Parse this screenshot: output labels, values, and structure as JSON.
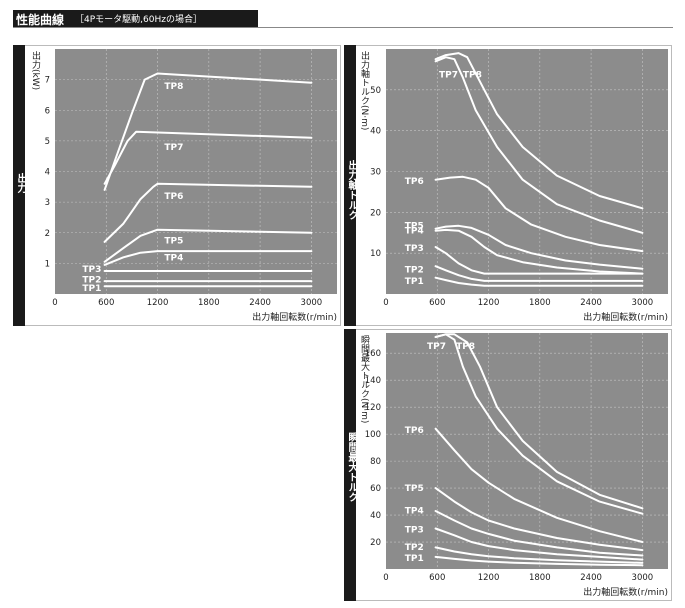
{
  "header": {
    "title": "性能曲線",
    "subtitle": "［4Pモータ駆動,60Hzの場合］"
  },
  "chart_data": [
    {
      "type": "line",
      "side_label": "出力",
      "ylabel": "出力(kW)",
      "xlabel": "出力軸回転数(r/min)",
      "xticks": [
        "0",
        "600",
        "1200",
        "1800",
        "2400",
        "3000"
      ],
      "yticks": [
        "1",
        "2",
        "3",
        "4",
        "5",
        "6",
        "7"
      ],
      "xlim": [
        0,
        3300
      ],
      "ylim": [
        0,
        8
      ],
      "grid": true,
      "series": [
        {
          "name": "TP8",
          "x": [
            580,
            720,
            900,
            1050,
            1200,
            3000
          ],
          "y": [
            3.4,
            4.5,
            5.9,
            7.0,
            7.2,
            6.9
          ]
        },
        {
          "name": "TP7",
          "x": [
            580,
            700,
            850,
            950,
            3000
          ],
          "y": [
            3.6,
            4.2,
            5.0,
            5.3,
            5.1
          ]
        },
        {
          "name": "TP6",
          "x": [
            580,
            800,
            1000,
            1150,
            1200,
            3000
          ],
          "y": [
            1.7,
            2.3,
            3.1,
            3.5,
            3.6,
            3.5
          ]
        },
        {
          "name": "TP5",
          "x": [
            580,
            800,
            1000,
            1200,
            3000
          ],
          "y": [
            1.05,
            1.5,
            1.9,
            2.1,
            2.0
          ]
        },
        {
          "name": "TP4",
          "x": [
            580,
            800,
            1000,
            1200,
            3000
          ],
          "y": [
            0.95,
            1.2,
            1.35,
            1.4,
            1.4
          ]
        },
        {
          "name": "TP3",
          "x": [
            580,
            3000
          ],
          "y": [
            0.75,
            0.75
          ]
        },
        {
          "name": "TP2",
          "x": [
            580,
            3000
          ],
          "y": [
            0.42,
            0.42
          ]
        },
        {
          "name": "TP1",
          "x": [
            580,
            3000
          ],
          "y": [
            0.25,
            0.25
          ]
        }
      ],
      "labels": [
        {
          "text": "TP8",
          "x": 1280,
          "y": 6.7
        },
        {
          "text": "TP7",
          "x": 1280,
          "y": 4.7
        },
        {
          "text": "TP6",
          "x": 1280,
          "y": 3.1
        },
        {
          "text": "TP5",
          "x": 1280,
          "y": 1.65
        },
        {
          "text": "TP4",
          "x": 1280,
          "y": 1.1
        },
        {
          "text": "TP3",
          "x": 320,
          "y": 0.72
        },
        {
          "text": "TP2",
          "x": 320,
          "y": 0.38
        },
        {
          "text": "TP1",
          "x": 320,
          "y": 0.1
        }
      ]
    },
    {
      "type": "line",
      "side_label": "出力軸トルク",
      "ylabel": "出力軸トルク(N·m)",
      "xlabel": "出力軸回転数(r/min)",
      "xticks": [
        "0",
        "600",
        "1200",
        "1800",
        "2400",
        "3000"
      ],
      "yticks": [
        "10",
        "20",
        "30",
        "40",
        "50"
      ],
      "xlim": [
        0,
        3300
      ],
      "ylim": [
        0,
        60
      ],
      "grid": true,
      "series": [
        {
          "name": "TP8",
          "x": [
            580,
            700,
            850,
            950,
            1100,
            1300,
            1600,
            2000,
            2500,
            3000
          ],
          "y": [
            57.5,
            58.5,
            59,
            58,
            52,
            44,
            36,
            29,
            24,
            21
          ]
        },
        {
          "name": "TP7",
          "x": [
            580,
            700,
            800,
            900,
            1050,
            1300,
            1600,
            2000,
            2500,
            3000
          ],
          "y": [
            57,
            58,
            57.5,
            53,
            45,
            36,
            28,
            22,
            18,
            15
          ]
        },
        {
          "name": "TP6",
          "x": [
            580,
            750,
            900,
            1050,
            1200,
            1400,
            1700,
            2100,
            2500,
            3000
          ],
          "y": [
            28,
            28.5,
            28.7,
            28,
            26,
            21,
            17,
            14,
            12,
            10.5
          ]
        },
        {
          "name": "TP5",
          "x": [
            580,
            700,
            850,
            1000,
            1200,
            1400,
            1700,
            2100,
            2500,
            3000
          ],
          "y": [
            16,
            16.5,
            16.7,
            16.2,
            14.5,
            12,
            10,
            8.2,
            7.2,
            6.2
          ]
        },
        {
          "name": "TP4",
          "x": [
            580,
            700,
            850,
            1000,
            1150,
            1300,
            1600,
            2000,
            2500,
            3000
          ],
          "y": [
            15.5,
            15.7,
            15.5,
            14,
            11.5,
            9.5,
            7.8,
            6.5,
            5.5,
            5
          ]
        },
        {
          "name": "TP3",
          "x": [
            580,
            700,
            850,
            1000,
            1150,
            1200,
            3000
          ],
          "y": [
            11.5,
            10,
            7.5,
            5.8,
            5,
            5,
            5
          ]
        },
        {
          "name": "TP2",
          "x": [
            580,
            700,
            850,
            1000,
            1150,
            1200,
            3000
          ],
          "y": [
            6.8,
            5.8,
            4.6,
            3.7,
            3.2,
            3.2,
            3.2
          ]
        },
        {
          "name": "TP1",
          "x": [
            580,
            700,
            850,
            1000,
            1150,
            1200,
            3000
          ],
          "y": [
            4,
            3.4,
            2.7,
            2.3,
            2,
            2,
            2
          ]
        }
      ],
      "labels": [
        {
          "text": "TP7",
          "x": 620,
          "y": 53
        },
        {
          "text": "TP8",
          "x": 900,
          "y": 53
        },
        {
          "text": "TP6",
          "x": 220,
          "y": 27
        },
        {
          "text": "TP5",
          "x": 220,
          "y": 16
        },
        {
          "text": "TP4",
          "x": 220,
          "y": 14.8
        },
        {
          "text": "TP3",
          "x": 220,
          "y": 10.5
        },
        {
          "text": "TP2",
          "x": 220,
          "y": 5.3
        },
        {
          "text": "TP1",
          "x": 220,
          "y": 2.5
        }
      ]
    },
    {
      "type": "line",
      "side_label": "瞬間最大トルク",
      "ylabel": "瞬間最大トルク(N·m)",
      "xlabel": "出力軸回転数(r/min)",
      "xticks": [
        "0",
        "600",
        "1200",
        "1800",
        "2400",
        "3000"
      ],
      "yticks": [
        "20",
        "40",
        "60",
        "80",
        "100",
        "120",
        "140",
        "160"
      ],
      "xlim": [
        0,
        3300
      ],
      "ylim": [
        0,
        175
      ],
      "grid": true,
      "series": [
        {
          "name": "TP8",
          "x": [
            580,
            700,
            800,
            950,
            1100,
            1300,
            1600,
            2000,
            2500,
            3000
          ],
          "y": [
            172,
            174,
            174,
            168,
            150,
            120,
            95,
            72,
            55,
            45
          ]
        },
        {
          "name": "TP7",
          "x": [
            580,
            700,
            800,
            900,
            1050,
            1300,
            1600,
            2000,
            2500,
            3000
          ],
          "y": [
            172,
            174,
            170,
            150,
            128,
            104,
            84,
            65,
            50,
            41
          ]
        },
        {
          "name": "TP6",
          "x": [
            580,
            800,
            1000,
            1200,
            1500,
            2000,
            2500,
            3000
          ],
          "y": [
            104,
            88,
            74,
            64,
            52,
            38,
            28,
            20
          ]
        },
        {
          "name": "TP5",
          "x": [
            580,
            800,
            1000,
            1200,
            1500,
            2000,
            2500,
            3000
          ],
          "y": [
            60,
            50,
            42,
            36,
            30,
            23,
            18,
            14
          ]
        },
        {
          "name": "TP4",
          "x": [
            580,
            800,
            1000,
            1200,
            1500,
            2000,
            2500,
            3000
          ],
          "y": [
            43,
            36,
            30,
            26,
            21,
            16,
            12,
            10
          ]
        },
        {
          "name": "TP3",
          "x": [
            580,
            800,
            1000,
            1200,
            1500,
            2000,
            2500,
            3000
          ],
          "y": [
            30,
            25,
            20,
            17,
            14,
            11,
            9,
            7
          ]
        },
        {
          "name": "TP2",
          "x": [
            580,
            800,
            1000,
            1200,
            1500,
            2000,
            2500,
            3000
          ],
          "y": [
            16,
            13,
            11,
            9.5,
            8,
            6.5,
            5.5,
            4.5
          ]
        },
        {
          "name": "TP1",
          "x": [
            580,
            800,
            1000,
            1200,
            1500,
            2000,
            2500,
            3000
          ],
          "y": [
            9,
            7.5,
            6.3,
            5.5,
            4.6,
            3.8,
            3.2,
            2.8
          ]
        }
      ],
      "labels": [
        {
          "text": "TP7",
          "x": 480,
          "y": 163
        },
        {
          "text": "TP8",
          "x": 820,
          "y": 163
        },
        {
          "text": "TP6",
          "x": 220,
          "y": 101
        },
        {
          "text": "TP5",
          "x": 220,
          "y": 58
        },
        {
          "text": "TP4",
          "x": 220,
          "y": 41
        },
        {
          "text": "TP3",
          "x": 220,
          "y": 27
        },
        {
          "text": "TP2",
          "x": 220,
          "y": 14
        },
        {
          "text": "TP1",
          "x": 220,
          "y": 6
        }
      ]
    }
  ]
}
